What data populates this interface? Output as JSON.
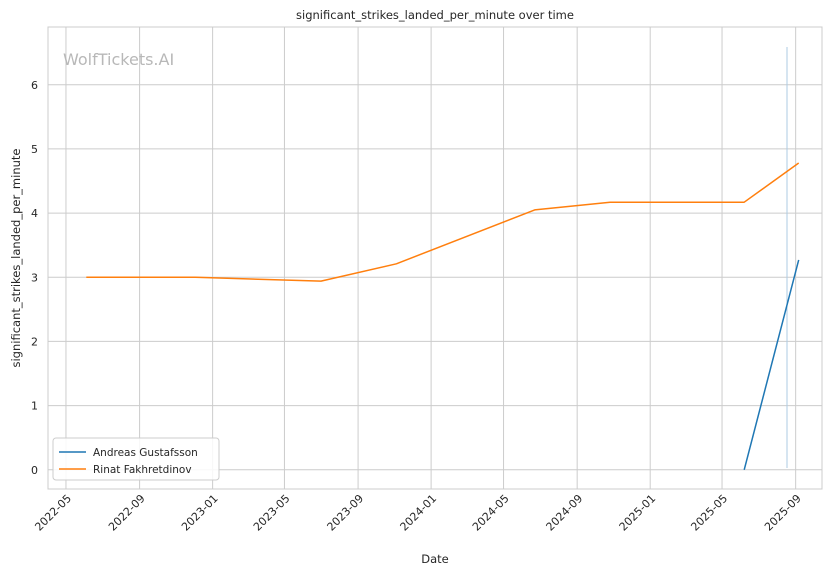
{
  "chart_data": {
    "type": "line",
    "title": "significant_strikes_landed_per_minute over time",
    "xlabel": "Date",
    "ylabel": "significant_strikes_landed_per_minute",
    "watermark": "WolfTickets.AI",
    "xlim": [
      "2022-04-01",
      "2025-10-15"
    ],
    "ylim": [
      -0.3,
      6.9
    ],
    "x_ticks": [
      "2022-05",
      "2022-09",
      "2023-01",
      "2023-05",
      "2023-09",
      "2024-01",
      "2024-05",
      "2024-09",
      "2025-01",
      "2025-05",
      "2025-09"
    ],
    "y_ticks": [
      0,
      1,
      2,
      3,
      4,
      5,
      6
    ],
    "grid": true,
    "legend_position": "lower-left",
    "series": [
      {
        "name": "Andreas Gustafsson",
        "color": "#1f77b4",
        "x": [
          "2025-06-07",
          "2025-09-06"
        ],
        "y": [
          0,
          3.27
        ]
      },
      {
        "name": "Rinat Fakhretdinov",
        "color": "#ff7f0e",
        "x": [
          "2022-06-04",
          "2022-12-03",
          "2023-07-01",
          "2023-11-04",
          "2024-06-22",
          "2024-10-26",
          "2025-06-07",
          "2025-09-06"
        ],
        "y": [
          3.0,
          3.0,
          2.94,
          3.21,
          4.05,
          4.17,
          4.17,
          4.78
        ]
      }
    ]
  }
}
